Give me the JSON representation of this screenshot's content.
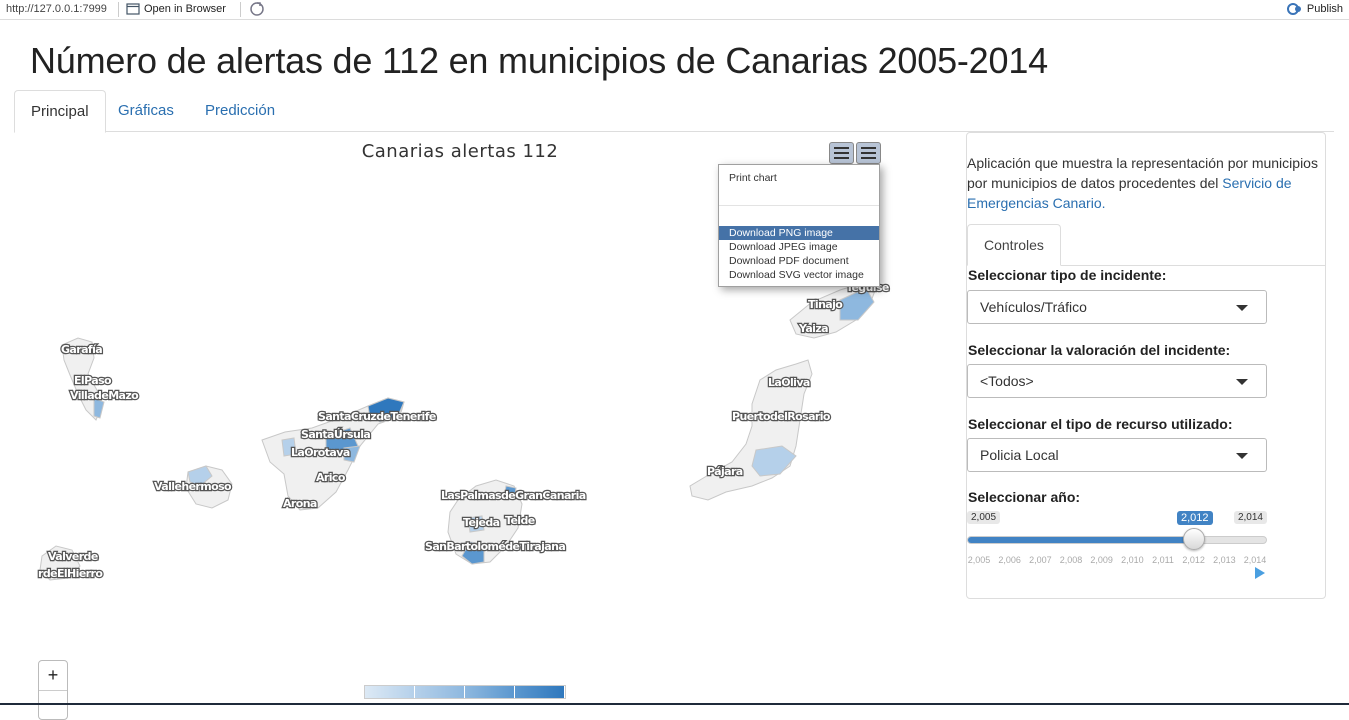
{
  "browser": {
    "url": "http://127.0.0.1:7999",
    "open_in_browser": "Open in Browser",
    "publish": "Publish"
  },
  "page_title": "Número de alertas de 112 en municipios de Canarias 2005-2014",
  "tabs": [
    {
      "label": "Principal",
      "active": true
    },
    {
      "label": "Gráficas",
      "active": false
    },
    {
      "label": "Predicción",
      "active": false
    }
  ],
  "chart": {
    "title": "Canarias alertas 112",
    "export_menu": {
      "items": [
        {
          "label": "Print chart"
        },
        {
          "label": "Download PNG image",
          "highlighted": true
        },
        {
          "label": "Download JPEG image"
        },
        {
          "label": "Download PDF document"
        },
        {
          "label": "Download SVG vector image"
        }
      ]
    },
    "map_labels": [
      "Garafía",
      "ElPaso",
      "VilladeMazo",
      "Vallehermoso",
      "Valverde",
      "rdeElHierro",
      "SantaCruzdeTenerife",
      "SantaÚrsula",
      "LaOrotava",
      "Arico",
      "Arona",
      "LasPalmasdeGranCanaria",
      "Tejeda",
      "Telde",
      "SanBartolomédeTirajana",
      "LaOliva",
      "PuertodelRosario",
      "Pájara",
      "Tinajo",
      "Yaiza",
      "Teguise"
    ],
    "legend_colors": [
      "#dce9f5",
      "#b5d0ea",
      "#8eb8df",
      "#5b97cf",
      "#2f78bd"
    ],
    "zoom_in": "+"
  },
  "sidebar": {
    "description_prefix": "Aplicación que muestra la representación por municipios por municipios de datos procedentes del ",
    "description_link": "Servicio de Emergencias Canario.",
    "subtab": "Controles",
    "incident_type": {
      "label": "Seleccionar tipo de incidente:",
      "value": "Vehículos/Tráfico"
    },
    "incident_rating": {
      "label": "Seleccionar la valoración del incidente:",
      "value": "<Todos>"
    },
    "resource_type": {
      "label": "Seleccionar el tipo de recurso utilizado:",
      "value": "Policia Local"
    },
    "year": {
      "label": "Seleccionar año:",
      "min_label": "2,005",
      "max_label": "2,014",
      "current_label": "2,012",
      "min": 2005,
      "max": 2014,
      "value": 2012,
      "ticks": [
        "2,005",
        "2,006",
        "2,007",
        "2,008",
        "2,009",
        "2,010",
        "2,011",
        "2,012",
        "2,013",
        "2,014"
      ]
    }
  }
}
